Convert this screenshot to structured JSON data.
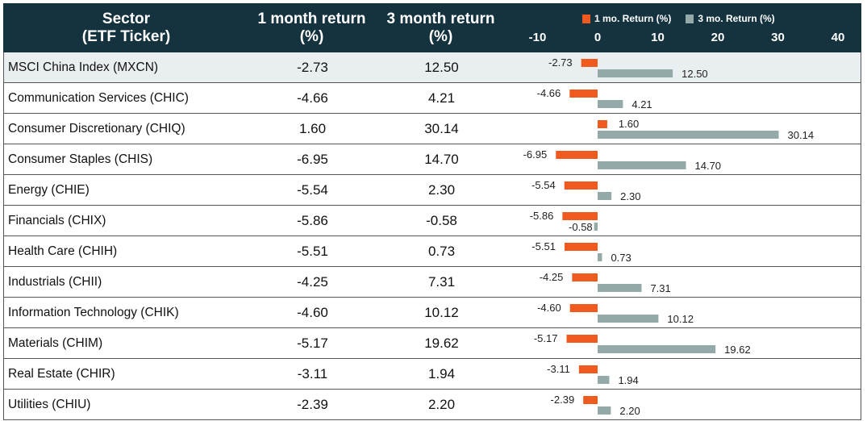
{
  "header": {
    "sector_line1": "Sector",
    "sector_line2": "(ETF Ticker)",
    "m1_line1": "1 month return",
    "m1_line2": "(%)",
    "m3_line1": "3 month return",
    "m3_line2": "(%)"
  },
  "chart_data": {
    "type": "bar",
    "orientation": "horizontal",
    "xlim": [
      -10,
      40
    ],
    "x_ticks": [
      "-10",
      "0",
      "10",
      "20",
      "30",
      "40"
    ],
    "legend_placement": "top",
    "colors": {
      "m1": "#f05a1e",
      "m3": "#94aaa9",
      "header_bg": "#14333f",
      "highlight_row": "#e9eef1"
    },
    "series": [
      {
        "name": "1 mo. Return (%)",
        "key": "m1"
      },
      {
        "name": "3 mo. Return (%)",
        "key": "m3"
      }
    ],
    "rows": [
      {
        "name": "MSCI China Index (MXCN)",
        "m1": -2.73,
        "m3": 12.5,
        "m1_label": "-2.73",
        "m3_label": "12.50",
        "highlight": true
      },
      {
        "name": "Communication Services (CHIC)",
        "m1": -4.66,
        "m3": 4.21,
        "m1_label": "-4.66",
        "m3_label": "4.21"
      },
      {
        "name": "Consumer Discretionary (CHIQ)",
        "m1": 1.6,
        "m3": 30.14,
        "m1_label": "1.60",
        "m3_label": "30.14"
      },
      {
        "name": "Consumer Staples (CHIS)",
        "m1": -6.95,
        "m3": 14.7,
        "m1_label": "-6.95",
        "m3_label": "14.70"
      },
      {
        "name": "Energy (CHIE)",
        "m1": -5.54,
        "m3": 2.3,
        "m1_label": "-5.54",
        "m3_label": "2.30"
      },
      {
        "name": "Financials (CHIX)",
        "m1": -5.86,
        "m3": -0.58,
        "m1_label": "-5.86",
        "m3_label": "-0.58"
      },
      {
        "name": "Health Care (CHIH)",
        "m1": -5.51,
        "m3": 0.73,
        "m1_label": "-5.51",
        "m3_label": "0.73"
      },
      {
        "name": "Industrials (CHII)",
        "m1": -4.25,
        "m3": 7.31,
        "m1_label": "-4.25",
        "m3_label": "7.31"
      },
      {
        "name": "Information Technology (CHIK)",
        "m1": -4.6,
        "m3": 10.12,
        "m1_label": "-4.60",
        "m3_label": "10.12"
      },
      {
        "name": "Materials (CHIM)",
        "m1": -5.17,
        "m3": 19.62,
        "m1_label": "-5.17",
        "m3_label": "19.62"
      },
      {
        "name": "Real Estate (CHIR)",
        "m1": -3.11,
        "m3": 1.94,
        "m1_label": "-3.11",
        "m3_label": "1.94"
      },
      {
        "name": "Utilities (CHIU)",
        "m1": -2.39,
        "m3": 2.2,
        "m1_label": "-2.39",
        "m3_label": "2.20"
      }
    ]
  }
}
